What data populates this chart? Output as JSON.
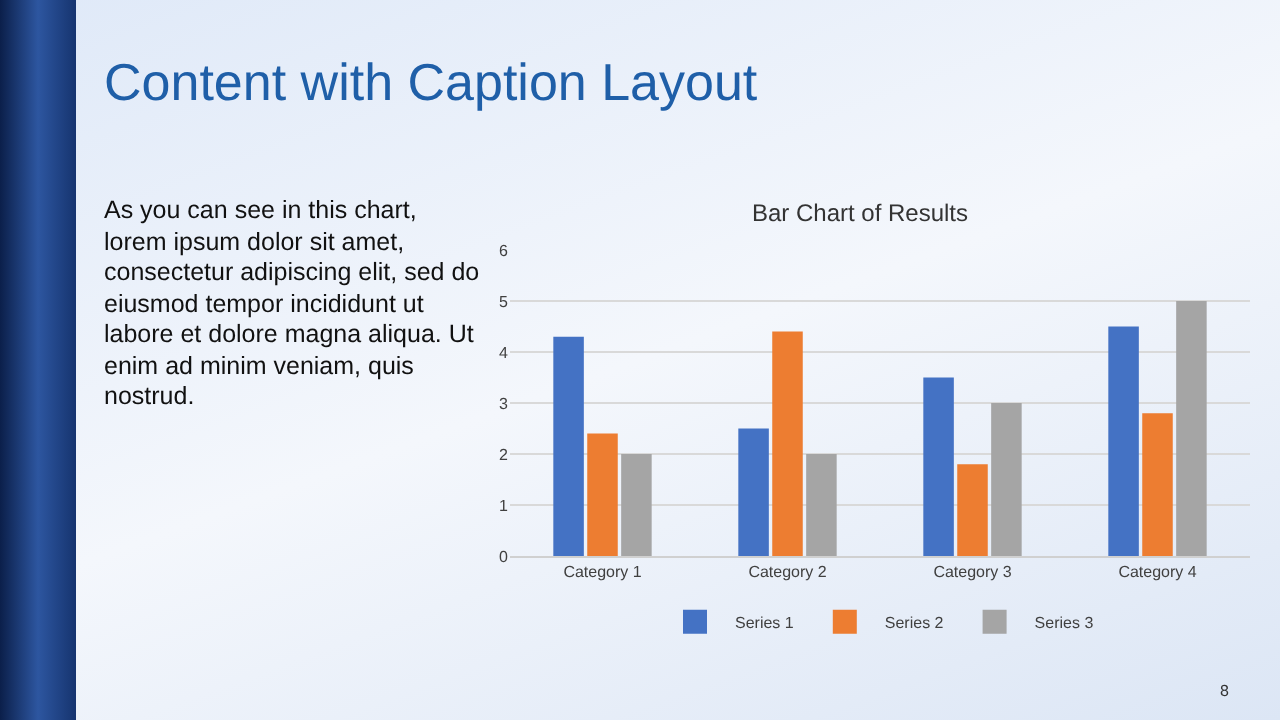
{
  "chart_data": {
    "type": "bar",
    "title": "Bar Chart of Results",
    "categories": [
      "Category 1",
      "Category 2",
      "Category 3",
      "Category 4"
    ],
    "series": [
      {
        "name": "Series 1",
        "color": "#4472c4",
        "values": [
          4.3,
          2.5,
          3.5,
          4.5
        ]
      },
      {
        "name": "Series 2",
        "color": "#ed7d31",
        "values": [
          2.4,
          4.4,
          1.8,
          2.8
        ]
      },
      {
        "name": "Series 3",
        "color": "#a5a5a5",
        "values": [
          2,
          2,
          3,
          5
        ]
      }
    ],
    "ylim": [
      0,
      6
    ],
    "yticks": [
      0,
      1,
      2,
      3,
      4,
      5,
      6
    ],
    "grid": "y",
    "legend": "bottom",
    "annotations": [
      "Content with Caption Layout",
      "As you can see in this chart, lorem ipsum dolor sit amet, consectetur adipiscing elit, sed do eiusmod tempor incididunt ut labore et dolore magna aliqua. Ut enim ad minim veniam, quis nostrud.",
      "8"
    ]
  }
}
